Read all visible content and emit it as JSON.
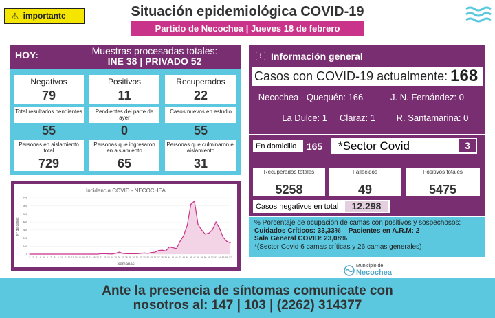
{
  "badge": {
    "label": "importante",
    "icon": "warning-icon"
  },
  "header": {
    "title": "Situación epidemiológica COVID-19",
    "subtitle": "Partido de Necochea | Jueves 18 de febrero"
  },
  "hoy": {
    "label": "HOY:",
    "muestras_line1": "Muestras procesadas totales:",
    "muestras_line2": "INE 38 | PRIVADO 52",
    "row1": [
      {
        "label": "Negativos",
        "value": "79"
      },
      {
        "label": "Positivos",
        "value": "11"
      },
      {
        "label": "Recuperados",
        "value": "22"
      }
    ],
    "row2": [
      {
        "label": "Total resultados pendientes",
        "value": "55"
      },
      {
        "label": "Pendientes del parte de ayer",
        "value": "0"
      },
      {
        "label": "Casos nuevos en estudio",
        "value": "55"
      }
    ],
    "row3": [
      {
        "label": "Personas en aislamiento total",
        "value": "729"
      },
      {
        "label": "Personas que ingresaron en aislamiento",
        "value": "65"
      },
      {
        "label": "Personas que culminaron el aislamiento",
        "value": "31"
      }
    ]
  },
  "chart_data": {
    "type": "line",
    "title": "Incidencia COVID - NECOCHEA",
    "xlabel": "Semanas",
    "ylabel": "N° de casos",
    "yticks": [
      "700",
      "600",
      "500",
      "400",
      "300",
      "200",
      "100",
      "0"
    ],
    "ylim": [
      0,
      700
    ],
    "x": [
      1,
      2,
      3,
      4,
      5,
      6,
      7,
      8,
      9,
      10,
      11,
      12,
      13,
      14,
      15,
      16,
      17,
      18,
      19,
      20,
      21,
      22,
      23,
      24,
      25,
      26,
      27,
      28,
      29,
      30,
      31,
      32,
      33,
      34,
      35,
      36,
      37,
      38,
      39,
      40,
      41,
      42,
      43,
      44,
      45,
      46,
      47,
      48,
      49,
      50,
      51,
      52,
      53,
      54,
      55,
      56,
      57
    ],
    "series": [
      {
        "values": [
          0,
          0,
          0,
          0,
          0,
          0,
          0,
          0,
          0,
          0,
          0,
          0,
          0,
          0,
          0,
          0,
          0,
          0,
          0,
          0,
          5,
          5,
          3,
          2,
          10,
          25,
          10,
          5,
          5,
          5,
          5,
          10,
          15,
          10,
          20,
          25,
          45,
          50,
          40,
          90,
          80,
          70,
          160,
          230,
          360,
          620,
          660,
          370,
          300,
          250,
          260,
          300,
          400,
          320,
          210,
          160,
          140
        ]
      }
    ],
    "line_color": "#c9338a",
    "fill_color": "#f3d4e6"
  },
  "info": {
    "header": "Información general",
    "casos_label": "Casos con COVID-19 actualmente:",
    "casos_value": "168",
    "cells": [
      "Necochea - Quequén: 166",
      "J. N. Fernández: 0",
      "La Dulce: 1",
      "Claraz: 1",
      "R. Santamarina: 0"
    ]
  },
  "domicilio": {
    "label": "En domicilio",
    "value": "165"
  },
  "sector": {
    "label": "*Sector Covid",
    "value": "3"
  },
  "totales": [
    {
      "label": "Recuperados totales",
      "value": "5258"
    },
    {
      "label": "Fallecidos",
      "value": "49"
    },
    {
      "label": "Positivos totales",
      "value": "5475"
    }
  ],
  "negativos": {
    "label": "Casos negativos en total",
    "value": "12.298"
  },
  "camas": {
    "line1": "% Porcentaje de ocupación de camas con positivos y sospechosos:",
    "line2a": "Cuidados Críticos: 33,33%",
    "line2b": "Pacientes en A.R.M: 2",
    "line3": "Sala General COVID: 23,08%",
    "line4": "*(Sector Covid 6 camas críticas y 26 camas generales)"
  },
  "logo": {
    "line1": "Municipio de",
    "line2": "Necochea",
    "icon": "waves-logo-icon"
  },
  "footer": {
    "line1": "Ante la presencia de síntomas comunicate con",
    "line2": "nosotros al: 147 | 103 | (2262) 314377"
  },
  "colors": {
    "purple": "#7a2e72",
    "cyan": "#5bc8e0",
    "magenta": "#c9338a",
    "yellow": "#f4e600"
  }
}
